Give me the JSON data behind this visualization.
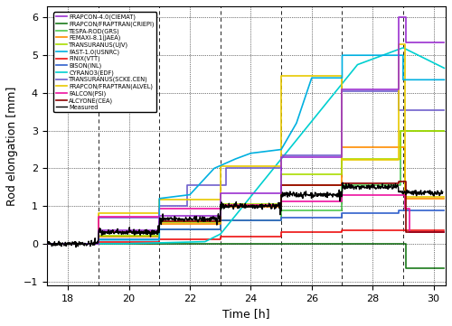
{
  "title": "",
  "xlabel": "Time [h]",
  "ylabel": "Rod elongation [mm]",
  "xlim": [
    17.3,
    30.4
  ],
  "ylim": [
    -1.1,
    6.3
  ],
  "xticks": [
    18,
    20,
    22,
    24,
    26,
    28,
    30
  ],
  "yticks": [
    -1,
    0,
    1,
    2,
    3,
    4,
    5,
    6
  ],
  "vlines": [
    19,
    21,
    23,
    25,
    27,
    29
  ],
  "legend_entries": [
    {
      "label": "FRAPCON-4.0(CIEMAT)",
      "color": "#9b30d0",
      "lw": 1.2
    },
    {
      "label": "FRAPCON/FRAPTRAN(CRIEPI)",
      "color": "#1a7a1a",
      "lw": 1.2
    },
    {
      "label": "TESPA-ROD(GRS)",
      "color": "#4ec94e",
      "lw": 1.2
    },
    {
      "label": "FEMAXI-8.1(JAEA)",
      "color": "#ff8c00",
      "lw": 1.2
    },
    {
      "label": "TRANSURANUS(UJV)",
      "color": "#aadd00",
      "lw": 1.2
    },
    {
      "label": "FAST-1.0(USNRC)",
      "color": "#00b0e0",
      "lw": 1.2
    },
    {
      "label": "FINIX(VTT)",
      "color": "#ee1111",
      "lw": 1.2
    },
    {
      "label": "BISON(INL)",
      "color": "#3060cc",
      "lw": 1.2
    },
    {
      "label": "CYRANO3(EDF)",
      "color": "#00d0d0",
      "lw": 1.2
    },
    {
      "label": "TRANSURANUS(SCKE.CEN)",
      "color": "#7060cc",
      "lw": 1.2
    },
    {
      "label": "FRAPCON/FRAPTRAN(ALVEL)",
      "color": "#e8c800",
      "lw": 1.2
    },
    {
      "label": "FALCON(PSI)",
      "color": "#ee10a0",
      "lw": 1.2
    },
    {
      "label": "ALCYONE(CEA)",
      "color": "#8b0000",
      "lw": 1.2
    },
    {
      "label": "Measured",
      "color": "#000000",
      "lw": 1.0
    }
  ],
  "background_color": "#ffffff"
}
